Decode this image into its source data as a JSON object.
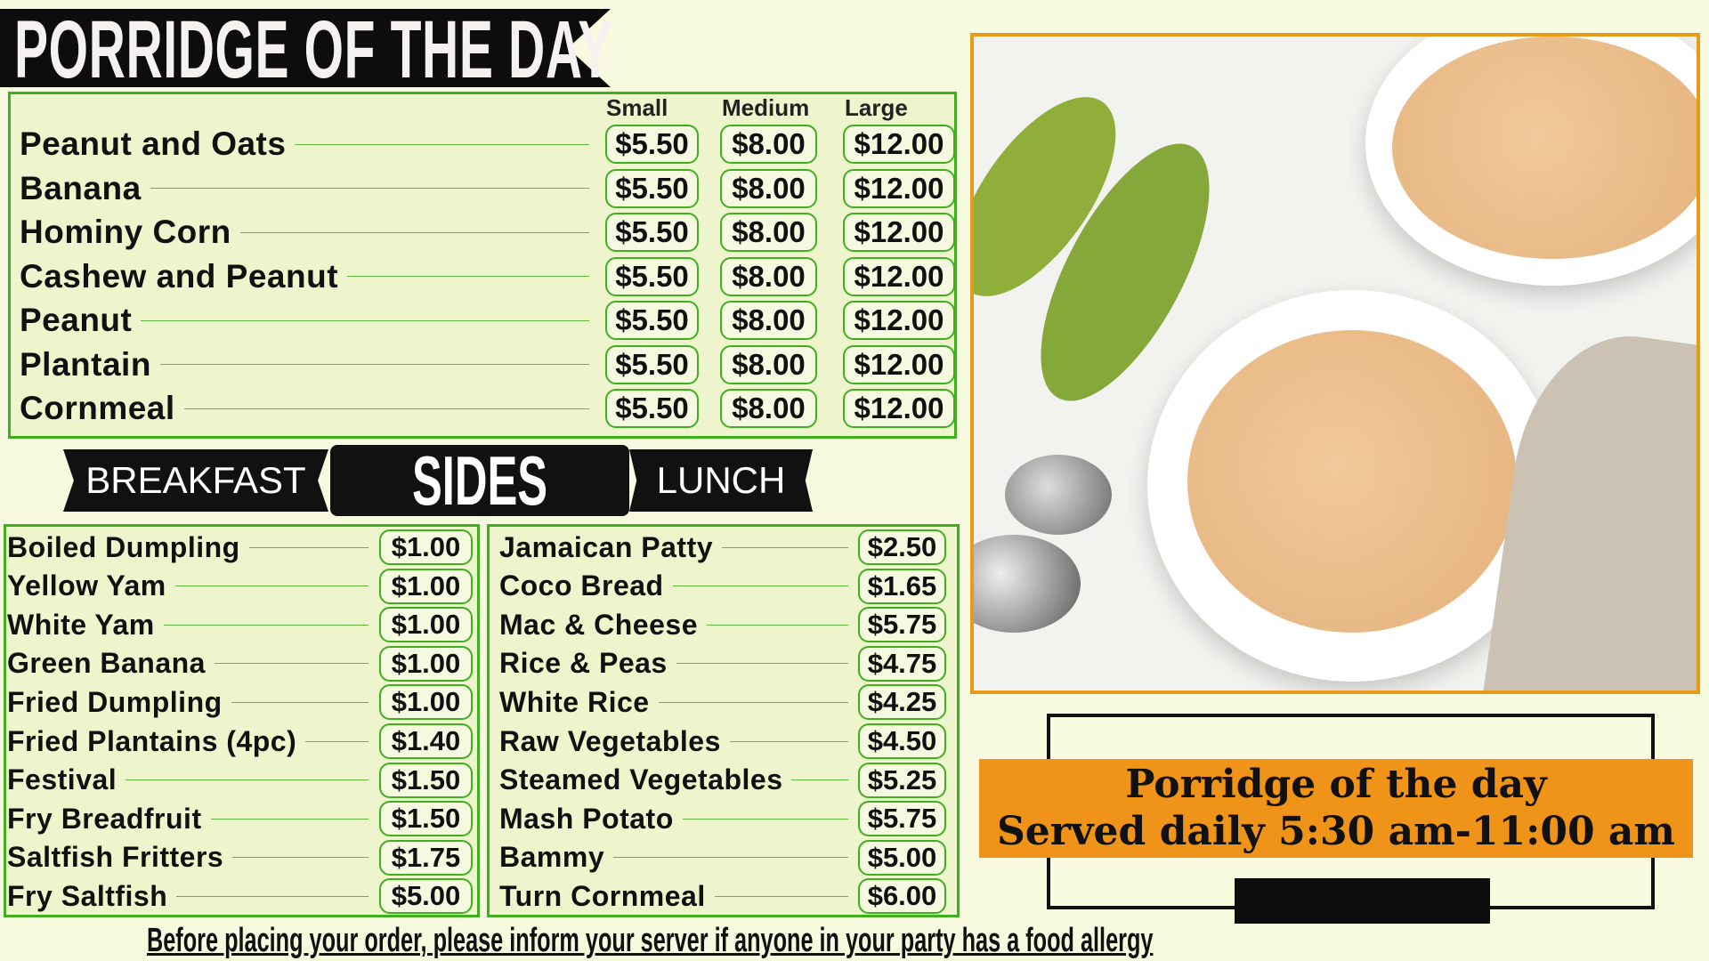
{
  "title": "PORRIDGE OF THE DAY",
  "porridge": {
    "sizes": [
      "Small",
      "Medium",
      "Large"
    ],
    "items": [
      {
        "name": "Peanut and Oats",
        "prices": [
          "$5.50",
          "$8.00",
          "$12.00"
        ]
      },
      {
        "name": "Banana",
        "prices": [
          "$5.50",
          "$8.00",
          "$12.00"
        ]
      },
      {
        "name": "Hominy Corn",
        "prices": [
          "$5.50",
          "$8.00",
          "$12.00"
        ]
      },
      {
        "name": "Cashew and Peanut",
        "prices": [
          "$5.50",
          "$8.00",
          "$12.00"
        ]
      },
      {
        "name": "Peanut",
        "prices": [
          "$5.50",
          "$8.00",
          "$12.00"
        ]
      },
      {
        "name": "Plantain",
        "prices": [
          "$5.50",
          "$8.00",
          "$12.00"
        ]
      },
      {
        "name": "Cornmeal",
        "prices": [
          "$5.50",
          "$8.00",
          "$12.00"
        ]
      }
    ]
  },
  "tags": {
    "breakfast": "BREAKFAST",
    "sides": "SIDES",
    "lunch": "LUNCH"
  },
  "breakfast": [
    {
      "name": "Boiled Dumpling",
      "price": "$1.00"
    },
    {
      "name": "Yellow Yam",
      "price": "$1.00"
    },
    {
      "name": "White Yam",
      "price": "$1.00"
    },
    {
      "name": "Green Banana",
      "price": "$1.00"
    },
    {
      "name": "Fried Dumpling",
      "price": "$1.00"
    },
    {
      "name": "Fried Plantains (4pc)",
      "price": "$1.40"
    },
    {
      "name": "Festival",
      "price": "$1.50"
    },
    {
      "name": "Fry Breadfruit",
      "price": "$1.50"
    },
    {
      "name": "Saltfish Fritters",
      "price": "$1.75"
    },
    {
      "name": "Fry Saltfish",
      "price": "$5.00"
    }
  ],
  "lunch": [
    {
      "name": "Jamaican Patty",
      "price": "$2.50"
    },
    {
      "name": "Coco Bread",
      "price": "$1.65"
    },
    {
      "name": "Mac & Cheese",
      "price": "$5.75"
    },
    {
      "name": "Rice & Peas",
      "price": "$4.75"
    },
    {
      "name": "White Rice",
      "price": "$4.25"
    },
    {
      "name": "Raw Vegetables",
      "price": "$4.50"
    },
    {
      "name": "Steamed Vegetables",
      "price": "$5.25"
    },
    {
      "name": "Mash Potato",
      "price": "$5.75"
    },
    {
      "name": "Bammy",
      "price": "$5.00"
    },
    {
      "name": "Turn Cornmeal",
      "price": "$6.00"
    }
  ],
  "promo": {
    "line1": "Porridge of the day",
    "line2": "Served daily 5:30 am-11:00 am"
  },
  "footer": "Before placing your order, please inform your server if anyone in your party has a food allergy",
  "colors": {
    "background": "#f8fadf",
    "panel": "#eef5cd",
    "green": "#3fae1f",
    "orange": "#ef9418",
    "black": "#0d0d0d"
  }
}
